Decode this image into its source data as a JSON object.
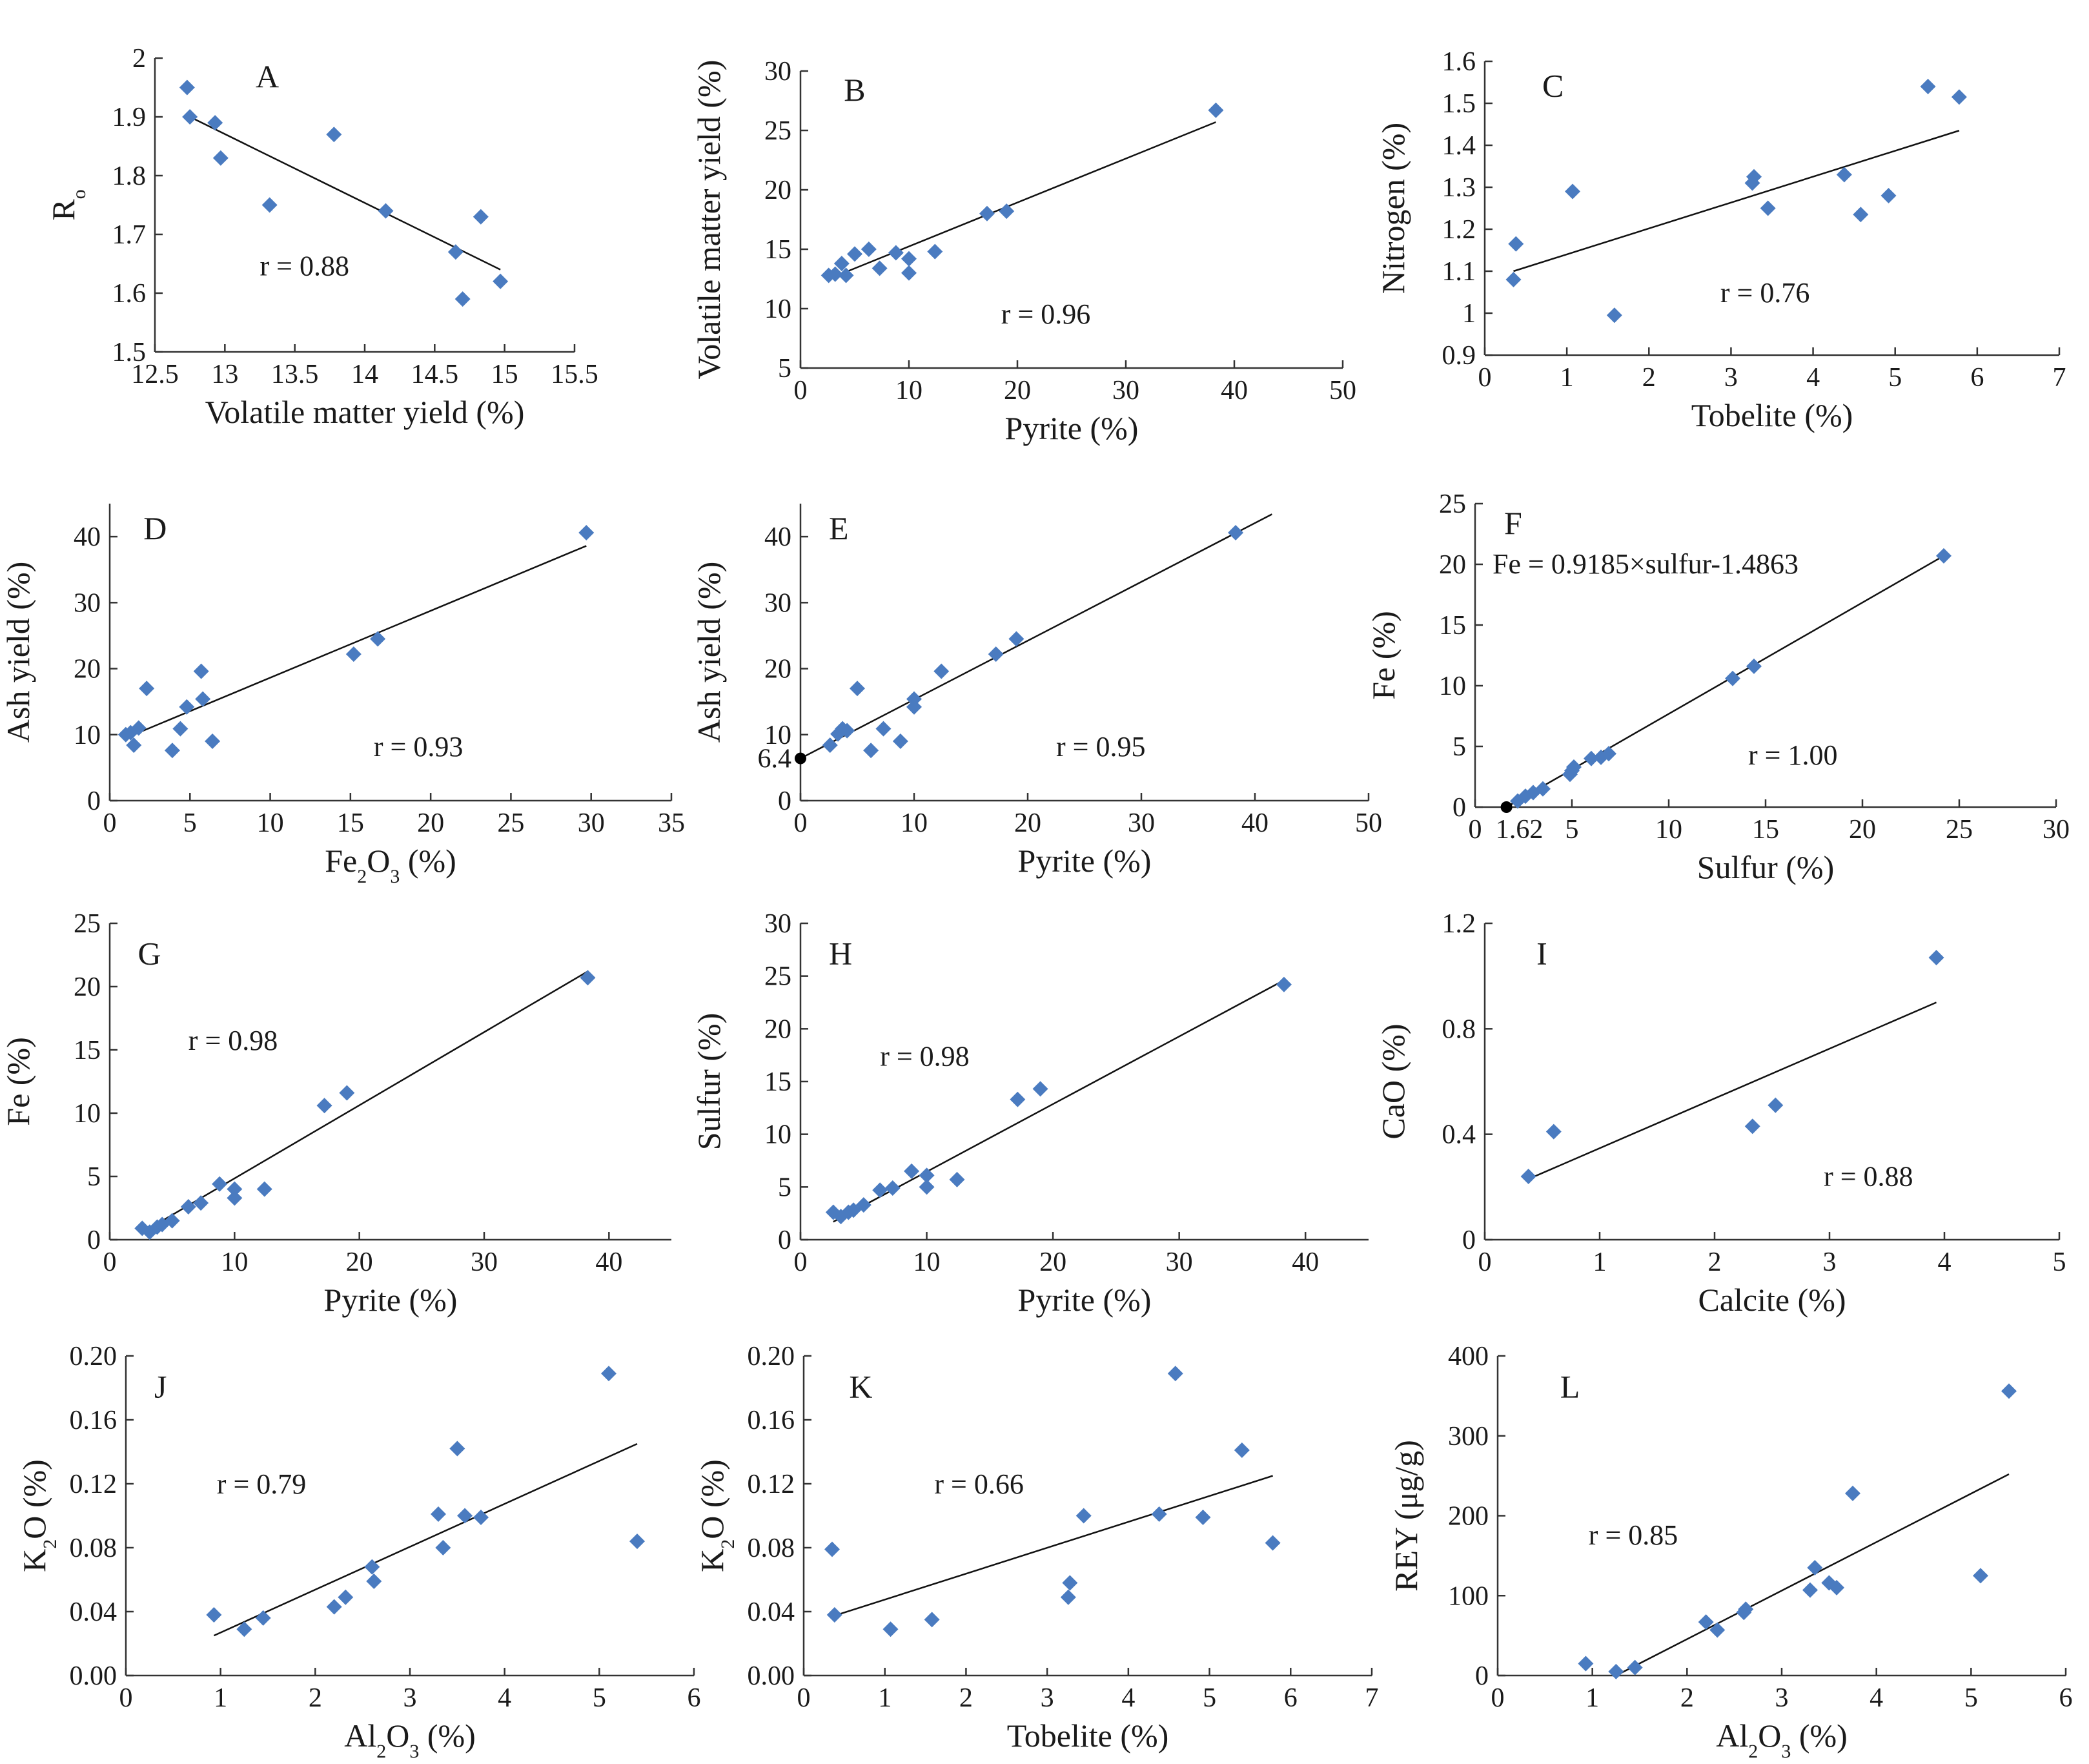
{
  "colors": {
    "marker": "#4a7bc0",
    "axis": "#333333",
    "text": "#1a1a1a",
    "fit_line": "#111111"
  },
  "chart_data": [
    {
      "type": "scatter",
      "panel": "A",
      "xlabel": "Volatile matter yield (%)",
      "ylabel": "Ro",
      "ylabel_main": "R",
      "ylabel_sub": "o",
      "xlim": [
        12.5,
        15.5
      ],
      "ylim": [
        1.5,
        2.0
      ],
      "xticks": [
        12.5,
        13,
        13.5,
        14,
        14.5,
        15,
        15.5
      ],
      "xtick_labels": [
        "12.5",
        "13",
        "13.5",
        "14",
        "14.5",
        "15",
        "15.5"
      ],
      "yticks": [
        1.5,
        1.6,
        1.7,
        1.8,
        1.9,
        2.0
      ],
      "ytick_labels": [
        "1.5",
        "1.6",
        "1.7",
        "1.8",
        "1.9",
        "2"
      ],
      "annotation": "r = 0.88",
      "points": [
        [
          12.73,
          1.95
        ],
        [
          12.75,
          1.9
        ],
        [
          12.93,
          1.89
        ],
        [
          12.97,
          1.83
        ],
        [
          13.32,
          1.75
        ],
        [
          13.78,
          1.87
        ],
        [
          14.15,
          1.74
        ],
        [
          14.65,
          1.67
        ],
        [
          14.7,
          1.59
        ],
        [
          14.83,
          1.73
        ],
        [
          14.97,
          1.62
        ]
      ],
      "fit": [
        [
          12.75,
          1.9
        ],
        [
          14.97,
          1.64
        ]
      ]
    },
    {
      "type": "scatter",
      "panel": "B",
      "xlabel": "Pyrite (%)",
      "ylabel": "Volatile matter yield (%)",
      "xlim": [
        0,
        50
      ],
      "ylim": [
        5,
        30
      ],
      "xticks": [
        0,
        10,
        20,
        30,
        40,
        50
      ],
      "xtick_labels": [
        "0",
        "10",
        "20",
        "30",
        "40",
        "50"
      ],
      "yticks": [
        5,
        10,
        15,
        20,
        25,
        30
      ],
      "ytick_labels": [
        "5",
        "10",
        "15",
        "20",
        "25",
        "30"
      ],
      "annotation": "r = 0.96",
      "points": [
        [
          2.6,
          12.8
        ],
        [
          3.2,
          12.9
        ],
        [
          3.8,
          13.8
        ],
        [
          4.2,
          12.8
        ],
        [
          5.0,
          14.6
        ],
        [
          6.3,
          15.0
        ],
        [
          7.3,
          13.4
        ],
        [
          8.8,
          14.7
        ],
        [
          10.0,
          14.2
        ],
        [
          10.0,
          13.0
        ],
        [
          12.4,
          14.8
        ],
        [
          17.2,
          18.0
        ],
        [
          19.0,
          18.2
        ],
        [
          38.3,
          26.7
        ]
      ],
      "fit": [
        [
          2.6,
          12.5
        ],
        [
          38.3,
          25.7
        ]
      ]
    },
    {
      "type": "scatter",
      "panel": "C",
      "xlabel": "Tobelite (%)",
      "ylabel": "Nitrogen (%)",
      "xlim": [
        0,
        7
      ],
      "ylim": [
        0.9,
        1.6
      ],
      "xticks": [
        0,
        1,
        2,
        3,
        4,
        5,
        6,
        7
      ],
      "xtick_labels": [
        "0",
        "1",
        "2",
        "3",
        "4",
        "5",
        "6",
        "7"
      ],
      "yticks": [
        0.9,
        1.0,
        1.1,
        1.2,
        1.3,
        1.4,
        1.5,
        1.6
      ],
      "ytick_labels": [
        "0.9",
        "1",
        "1.1",
        "1.2",
        "1.3",
        "1.4",
        "1.5",
        "1.6"
      ],
      "annotation": "r = 0.76",
      "points": [
        [
          0.35,
          1.08
        ],
        [
          0.38,
          1.165
        ],
        [
          1.07,
          1.29
        ],
        [
          1.58,
          0.995
        ],
        [
          3.26,
          1.31
        ],
        [
          3.28,
          1.325
        ],
        [
          3.45,
          1.25
        ],
        [
          4.38,
          1.33
        ],
        [
          4.58,
          1.235
        ],
        [
          4.92,
          1.28
        ],
        [
          5.4,
          1.54
        ],
        [
          5.78,
          1.515
        ]
      ],
      "fit": [
        [
          0.35,
          1.1
        ],
        [
          5.78,
          1.435
        ]
      ]
    },
    {
      "type": "scatter",
      "panel": "D",
      "xlabel": "Fe2O3 (%)",
      "xlabel_parts": [
        "Fe",
        "2",
        "O",
        "3",
        " (%)"
      ],
      "ylabel": "Ash yield (%)",
      "xlim": [
        0,
        35
      ],
      "ylim": [
        0,
        45
      ],
      "xticks": [
        0,
        5,
        10,
        15,
        20,
        25,
        30,
        35
      ],
      "xtick_labels": [
        "0",
        "5",
        "10",
        "15",
        "20",
        "25",
        "30",
        "35"
      ],
      "yticks": [
        0,
        10,
        20,
        30,
        40
      ],
      "ytick_labels": [
        "0",
        "10",
        "20",
        "30",
        "40"
      ],
      "annotation": "r = 0.93",
      "points": [
        [
          1.0,
          10.0
        ],
        [
          1.3,
          10.3
        ],
        [
          1.5,
          8.4
        ],
        [
          1.8,
          11.0
        ],
        [
          2.3,
          17.0
        ],
        [
          3.9,
          7.6
        ],
        [
          4.4,
          10.9
        ],
        [
          4.8,
          14.2
        ],
        [
          5.7,
          19.6
        ],
        [
          5.8,
          15.4
        ],
        [
          6.4,
          9.0
        ],
        [
          15.2,
          22.2
        ],
        [
          16.7,
          24.5
        ],
        [
          29.7,
          40.6
        ]
      ],
      "fit": [
        [
          1.0,
          9.5
        ],
        [
          29.7,
          38.6
        ]
      ]
    },
    {
      "type": "scatter",
      "panel": "E",
      "xlabel": "Pyrite (%)",
      "ylabel": "Ash yield (%)",
      "xlim": [
        0,
        50
      ],
      "ylim": [
        0,
        45
      ],
      "xticks": [
        0,
        10,
        20,
        30,
        40,
        50
      ],
      "xtick_labels": [
        "0",
        "10",
        "20",
        "30",
        "40",
        "50"
      ],
      "yticks": [
        0,
        10,
        20,
        30,
        40
      ],
      "ytick_labels": [
        "0",
        "10",
        "20",
        "30",
        "40"
      ],
      "extra_ytick_label": "6.4",
      "extra_ytick_value": 6.4,
      "annotation": "r = 0.95",
      "intercept_point": [
        0,
        6.4
      ],
      "points": [
        [
          2.6,
          8.4
        ],
        [
          3.3,
          10.1
        ],
        [
          3.7,
          10.9
        ],
        [
          4.1,
          10.6
        ],
        [
          5.0,
          17.0
        ],
        [
          6.2,
          7.6
        ],
        [
          7.3,
          10.9
        ],
        [
          8.8,
          9.0
        ],
        [
          10.0,
          15.4
        ],
        [
          10.0,
          14.2
        ],
        [
          12.4,
          19.6
        ],
        [
          17.2,
          22.2
        ],
        [
          19.0,
          24.5
        ],
        [
          38.3,
          40.6
        ]
      ],
      "fit": [
        [
          0,
          6.4
        ],
        [
          41.5,
          43.4
        ]
      ],
      "fit_bold": true
    },
    {
      "type": "scatter",
      "panel": "F",
      "xlabel": "Sulfur (%)",
      "ylabel": "Fe (%)",
      "xlim": [
        0,
        30
      ],
      "ylim": [
        0,
        25
      ],
      "xticks": [
        0,
        5,
        10,
        15,
        20,
        25,
        30
      ],
      "xtick_labels": [
        "0",
        "5",
        "10",
        "15",
        "20",
        "25",
        "30"
      ],
      "extra_xtick_label": "1.62",
      "extra_xtick_value": 1.62,
      "yticks": [
        0,
        5,
        10,
        15,
        20,
        25
      ],
      "ytick_labels": [
        "0",
        "5",
        "10",
        "15",
        "20",
        "25"
      ],
      "annotation": "r = 1.00",
      "equation": "Fe = 0.9185×sulfur-1.4863",
      "intercept_point": [
        1.62,
        0
      ],
      "points": [
        [
          2.2,
          0.5
        ],
        [
          2.6,
          0.9
        ],
        [
          3.0,
          1.2
        ],
        [
          3.5,
          1.5
        ],
        [
          4.9,
          2.7
        ],
        [
          5.0,
          3.0
        ],
        [
          5.1,
          3.3
        ],
        [
          6.0,
          4.0
        ],
        [
          6.5,
          4.1
        ],
        [
          6.9,
          4.4
        ],
        [
          13.3,
          10.6
        ],
        [
          14.4,
          11.6
        ],
        [
          24.2,
          20.7
        ]
      ],
      "fit": [
        [
          1.62,
          0
        ],
        [
          24.2,
          20.7
        ]
      ]
    },
    {
      "type": "scatter",
      "panel": "G",
      "xlabel": "Pyrite (%)",
      "ylabel": "Fe (%)",
      "xlim": [
        0,
        45
      ],
      "ylim": [
        0,
        25
      ],
      "xticks": [
        0,
        10,
        20,
        30,
        40
      ],
      "xtick_labels": [
        "0",
        "10",
        "20",
        "30",
        "40"
      ],
      "yticks": [
        0,
        5,
        10,
        15,
        20,
        25
      ],
      "ytick_labels": [
        "0",
        "5",
        "10",
        "15",
        "20",
        "25"
      ],
      "annotation": "r = 0.98",
      "points": [
        [
          2.6,
          0.9
        ],
        [
          3.2,
          0.6
        ],
        [
          3.8,
          1.0
        ],
        [
          4.2,
          1.2
        ],
        [
          5.0,
          1.5
        ],
        [
          6.3,
          2.6
        ],
        [
          7.3,
          2.9
        ],
        [
          8.8,
          4.4
        ],
        [
          10.0,
          4.0
        ],
        [
          10.0,
          3.3
        ],
        [
          12.4,
          4.0
        ],
        [
          17.2,
          10.6
        ],
        [
          19.0,
          11.6
        ],
        [
          38.3,
          20.7
        ]
      ],
      "fit": [
        [
          3.0,
          0.8
        ],
        [
          38.3,
          21.2
        ]
      ]
    },
    {
      "type": "scatter",
      "panel": "H",
      "xlabel": "Pyrite (%)",
      "ylabel": "Sulfur (%)",
      "xlim": [
        0,
        45
      ],
      "ylim": [
        0,
        30
      ],
      "xticks": [
        0,
        10,
        20,
        30,
        40
      ],
      "xtick_labels": [
        "0",
        "10",
        "20",
        "30",
        "40"
      ],
      "yticks": [
        0,
        5,
        10,
        15,
        20,
        25,
        30
      ],
      "ytick_labels": [
        "0",
        "5",
        "10",
        "15",
        "20",
        "25",
        "30"
      ],
      "annotation": "r = 0.98",
      "points": [
        [
          2.6,
          2.6
        ],
        [
          3.2,
          2.2
        ],
        [
          3.8,
          2.6
        ],
        [
          4.2,
          2.8
        ],
        [
          5.0,
          3.3
        ],
        [
          6.3,
          4.7
        ],
        [
          7.3,
          4.9
        ],
        [
          8.8,
          6.5
        ],
        [
          10.0,
          6.1
        ],
        [
          10.0,
          5.0
        ],
        [
          12.4,
          5.7
        ],
        [
          17.2,
          13.3
        ],
        [
          19.0,
          14.3
        ],
        [
          38.3,
          24.2
        ]
      ],
      "fit": [
        [
          2.6,
          1.7
        ],
        [
          38.3,
          24.6
        ]
      ]
    },
    {
      "type": "scatter",
      "panel": "I",
      "xlabel": "Calcite (%)",
      "ylabel": "CaO (%)",
      "xlim": [
        0,
        5
      ],
      "ylim": [
        0,
        1.2
      ],
      "xticks": [
        0,
        1,
        2,
        3,
        4,
        5
      ],
      "xtick_labels": [
        "0",
        "1",
        "2",
        "3",
        "4",
        "5"
      ],
      "yticks": [
        0,
        0.4,
        0.8,
        1.2
      ],
      "ytick_labels": [
        "0",
        "0.4",
        "0.8",
        "1.2"
      ],
      "annotation": "r = 0.88",
      "points": [
        [
          0.38,
          0.24
        ],
        [
          0.6,
          0.41
        ],
        [
          2.33,
          0.43
        ],
        [
          2.53,
          0.51
        ],
        [
          3.93,
          1.07
        ]
      ],
      "fit": [
        [
          0.38,
          0.23
        ],
        [
          3.93,
          0.9
        ]
      ]
    },
    {
      "type": "scatter",
      "panel": "J",
      "xlabel": "Al2O3 (%)",
      "xlabel_parts": [
        "Al",
        "2",
        "O",
        "3",
        " (%)"
      ],
      "ylabel": "K2O (%)",
      "ylabel_parts": [
        "K",
        "2",
        "O (%)"
      ],
      "xlim": [
        0,
        6
      ],
      "ylim": [
        0,
        0.2
      ],
      "xticks": [
        0,
        1,
        2,
        3,
        4,
        5,
        6
      ],
      "xtick_labels": [
        "0",
        "1",
        "2",
        "3",
        "4",
        "5",
        "6"
      ],
      "yticks": [
        0,
        0.04,
        0.08,
        0.12,
        0.16,
        0.2
      ],
      "ytick_labels": [
        "0.00",
        "0.04",
        "0.08",
        "0.12",
        "0.16",
        "0.20"
      ],
      "annotation": "r = 0.79",
      "points": [
        [
          0.93,
          0.038
        ],
        [
          1.25,
          0.029
        ],
        [
          1.45,
          0.036
        ],
        [
          2.2,
          0.043
        ],
        [
          2.32,
          0.049
        ],
        [
          2.6,
          0.068
        ],
        [
          2.62,
          0.059
        ],
        [
          3.3,
          0.101
        ],
        [
          3.35,
          0.08
        ],
        [
          3.5,
          0.142
        ],
        [
          3.58,
          0.1
        ],
        [
          3.75,
          0.099
        ],
        [
          5.1,
          0.189
        ],
        [
          5.4,
          0.084
        ]
      ],
      "fit": [
        [
          0.93,
          0.025
        ],
        [
          5.4,
          0.145
        ]
      ]
    },
    {
      "type": "scatter",
      "panel": "K",
      "xlabel": "Tobelite (%)",
      "ylabel": "K2O (%)",
      "ylabel_parts": [
        "K",
        "2",
        "O (%)"
      ],
      "xlim": [
        0,
        7
      ],
      "ylim": [
        0,
        0.2
      ],
      "xticks": [
        0,
        1,
        2,
        3,
        4,
        5,
        6,
        7
      ],
      "xtick_labels": [
        "0",
        "1",
        "2",
        "3",
        "4",
        "5",
        "6",
        "7"
      ],
      "yticks": [
        0,
        0.04,
        0.08,
        0.12,
        0.16,
        0.2
      ],
      "ytick_labels": [
        "0.00",
        "0.04",
        "0.08",
        "0.12",
        "0.16",
        "0.20"
      ],
      "annotation": "r = 0.66",
      "points": [
        [
          0.35,
          0.079
        ],
        [
          0.38,
          0.038
        ],
        [
          1.07,
          0.029
        ],
        [
          1.58,
          0.035
        ],
        [
          3.26,
          0.049
        ],
        [
          3.28,
          0.058
        ],
        [
          3.45,
          0.1
        ],
        [
          4.38,
          0.101
        ],
        [
          4.58,
          0.189
        ],
        [
          4.92,
          0.099
        ],
        [
          5.4,
          0.141
        ],
        [
          5.78,
          0.083
        ]
      ],
      "fit": [
        [
          0.35,
          0.037
        ],
        [
          5.78,
          0.125
        ]
      ]
    },
    {
      "type": "scatter",
      "panel": "L",
      "xlabel": "Al2O3 (%)",
      "xlabel_parts": [
        "Al",
        "2",
        "O",
        "3",
        " (%)"
      ],
      "ylabel": "REY (μg/g)",
      "xlim": [
        0,
        6
      ],
      "ylim": [
        0,
        400
      ],
      "xticks": [
        0,
        1,
        2,
        3,
        4,
        5,
        6
      ],
      "xtick_labels": [
        "0",
        "1",
        "2",
        "3",
        "4",
        "5",
        "6"
      ],
      "yticks": [
        0,
        100,
        200,
        300,
        400
      ],
      "ytick_labels": [
        "0",
        "100",
        "200",
        "300",
        "400"
      ],
      "annotation": "r = 0.85",
      "points": [
        [
          0.93,
          15
        ],
        [
          1.25,
          5
        ],
        [
          1.45,
          10
        ],
        [
          2.2,
          67
        ],
        [
          2.32,
          57
        ],
        [
          2.6,
          79
        ],
        [
          2.62,
          83
        ],
        [
          3.3,
          107
        ],
        [
          3.35,
          135
        ],
        [
          3.5,
          116
        ],
        [
          3.58,
          110
        ],
        [
          3.75,
          228
        ],
        [
          5.1,
          125
        ],
        [
          5.4,
          356
        ]
      ],
      "fit": [
        [
          1.25,
          0
        ],
        [
          5.4,
          252
        ]
      ]
    }
  ]
}
